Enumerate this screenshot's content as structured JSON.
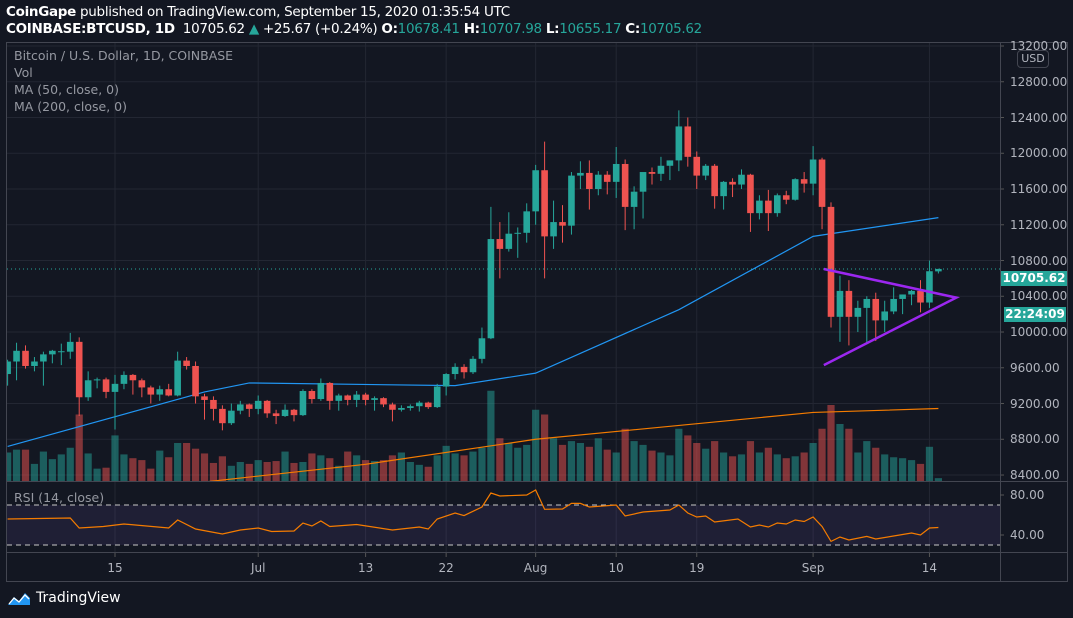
{
  "header": {
    "author": "CoinGape",
    "published": "published on TradingView.com, September 15, 2020 01:35:54 UTC",
    "symbol": "COINBASE:BTCUSD, 1D",
    "last": "10705.62",
    "change": "+25.67 (+0.24%)",
    "o_label": "O:",
    "o": "10678.41",
    "h_label": "H:",
    "h": "10707.98",
    "l_label": "L:",
    "l": "10655.17",
    "c_label": "C:",
    "c": "10705.62"
  },
  "legend": {
    "title": "Bitcoin / U.S. Dollar, 1D, COINBASE",
    "vol": "Vol",
    "ma50": "MA (50, close, 0)",
    "ma200": "MA (200, close, 0)",
    "rsi": "RSI (14, close)"
  },
  "price_axis": {
    "currency": "USD",
    "last_price_label": "10705.62",
    "countdown": "22:24:09"
  },
  "footer": {
    "brand": "TradingView"
  },
  "colors": {
    "up": "#26a69a",
    "down": "#ef5350",
    "ma50": "#2196f3",
    "ma200": "#f57c00",
    "rsi": "#f57c00",
    "triangle": "#9c27f0",
    "background": "#131722"
  },
  "chart_data": {
    "type": "candlestick",
    "title": "Bitcoin / U.S. Dollar, 1D, COINBASE",
    "start_date": "2020-06-03",
    "ylim": [
      8400,
      13200
    ],
    "price_ticks": [
      "13200.00",
      "12800.00",
      "12400.00",
      "12000.00",
      "11600.00",
      "11200.00",
      "10800.00",
      "10400.00",
      "10000.00",
      "9600.00",
      "9200.00",
      "8800.00",
      "8400.00"
    ],
    "date_ticks": [
      {
        "label": "15",
        "day": 12
      },
      {
        "label": "Jul",
        "day": 28
      },
      {
        "label": "13",
        "day": 40
      },
      {
        "label": "22",
        "day": 49
      },
      {
        "label": "Aug",
        "day": 59
      },
      {
        "label": "10",
        "day": 68
      },
      {
        "label": "19",
        "day": 77
      },
      {
        "label": "Sep",
        "day": 90
      },
      {
        "label": "14",
        "day": 103
      }
    ],
    "ohlc": [
      [
        9530,
        9690,
        9400,
        9670
      ],
      [
        9670,
        9880,
        9460,
        9790
      ],
      [
        9790,
        9850,
        9590,
        9620
      ],
      [
        9620,
        9720,
        9560,
        9670
      ],
      [
        9670,
        9780,
        9400,
        9750
      ],
      [
        9750,
        9800,
        9650,
        9790
      ],
      [
        9780,
        9870,
        9630,
        9785
      ],
      [
        9780,
        9990,
        9700,
        9890
      ],
      [
        9890,
        9940,
        9060,
        9270
      ],
      [
        9270,
        9560,
        9230,
        9460
      ],
      [
        9460,
        9490,
        9370,
        9470
      ],
      [
        9470,
        9490,
        9260,
        9330
      ],
      [
        9330,
        9520,
        8910,
        9420
      ],
      [
        9420,
        9560,
        9360,
        9520
      ],
      [
        9520,
        9530,
        9300,
        9460
      ],
      [
        9460,
        9480,
        9270,
        9380
      ],
      [
        9380,
        9400,
        9200,
        9300
      ],
      [
        9300,
        9400,
        9230,
        9360
      ],
      [
        9360,
        9420,
        9280,
        9290
      ],
      [
        9290,
        9780,
        9280,
        9680
      ],
      [
        9680,
        9720,
        9580,
        9620
      ],
      [
        9620,
        9670,
        9200,
        9280
      ],
      [
        9280,
        9310,
        9020,
        9240
      ],
      [
        9240,
        9280,
        9010,
        9140
      ],
      [
        9140,
        9180,
        8900,
        8980
      ],
      [
        8980,
        9200,
        8960,
        9120
      ],
      [
        9120,
        9230,
        9080,
        9190
      ],
      [
        9190,
        9200,
        9050,
        9140
      ],
      [
        9140,
        9290,
        9080,
        9230
      ],
      [
        9230,
        9240,
        9040,
        9090
      ],
      [
        9090,
        9130,
        8970,
        9060
      ],
      [
        9060,
        9190,
        9050,
        9130
      ],
      [
        9130,
        9140,
        9000,
        9070
      ],
      [
        9070,
        9360,
        9060,
        9340
      ],
      [
        9340,
        9360,
        9200,
        9250
      ],
      [
        9250,
        9480,
        9230,
        9430
      ],
      [
        9430,
        9440,
        9130,
        9230
      ],
      [
        9230,
        9310,
        9120,
        9290
      ],
      [
        9290,
        9300,
        9180,
        9240
      ],
      [
        9240,
        9340,
        9160,
        9300
      ],
      [
        9300,
        9320,
        9180,
        9240
      ],
      [
        9240,
        9280,
        9120,
        9260
      ],
      [
        9260,
        9270,
        9160,
        9190
      ],
      [
        9190,
        9210,
        9000,
        9130
      ],
      [
        9130,
        9180,
        9110,
        9150
      ],
      [
        9150,
        9190,
        9120,
        9170
      ],
      [
        9170,
        9230,
        9110,
        9210
      ],
      [
        9210,
        9220,
        9140,
        9160
      ],
      [
        9160,
        9420,
        9150,
        9390
      ],
      [
        9390,
        9540,
        9290,
        9530
      ],
      [
        9530,
        9650,
        9470,
        9610
      ],
      [
        9610,
        9640,
        9480,
        9550
      ],
      [
        9550,
        9730,
        9530,
        9700
      ],
      [
        9700,
        10050,
        9650,
        9930
      ],
      [
        9930,
        11400,
        9920,
        11040
      ],
      [
        11040,
        11230,
        10600,
        10930
      ],
      [
        10930,
        11340,
        10900,
        11100
      ],
      [
        11100,
        11170,
        10830,
        11110
      ],
      [
        11110,
        11440,
        11000,
        11350
      ],
      [
        11350,
        11870,
        11200,
        11810
      ],
      [
        11810,
        12130,
        10600,
        11070
      ],
      [
        11070,
        11470,
        10930,
        11230
      ],
      [
        11230,
        11420,
        11000,
        11190
      ],
      [
        11190,
        11790,
        11090,
        11750
      ],
      [
        11750,
        11910,
        11600,
        11780
      ],
      [
        11780,
        11920,
        11370,
        11600
      ],
      [
        11600,
        11800,
        11530,
        11760
      ],
      [
        11760,
        11800,
        11540,
        11680
      ],
      [
        11680,
        12070,
        11500,
        11880
      ],
      [
        11880,
        11930,
        11140,
        11400
      ],
      [
        11400,
        11630,
        11150,
        11570
      ],
      [
        11570,
        11780,
        11270,
        11790
      ],
      [
        11790,
        11840,
        11650,
        11770
      ],
      [
        11770,
        11960,
        11690,
        11860
      ],
      [
        11860,
        11920,
        11700,
        11920
      ],
      [
        11920,
        12480,
        11800,
        12300
      ],
      [
        12300,
        12400,
        11850,
        11960
      ],
      [
        11960,
        12020,
        11600,
        11750
      ],
      [
        11750,
        11880,
        11700,
        11860
      ],
      [
        11860,
        11880,
        11380,
        11520
      ],
      [
        11520,
        11690,
        11370,
        11680
      ],
      [
        11680,
        11720,
        11510,
        11650
      ],
      [
        11650,
        11820,
        11600,
        11760
      ],
      [
        11760,
        11770,
        11120,
        11330
      ],
      [
        11330,
        11530,
        11260,
        11470
      ],
      [
        11470,
        11590,
        11130,
        11330
      ],
      [
        11330,
        11550,
        11290,
        11530
      ],
      [
        11530,
        11580,
        11430,
        11480
      ],
      [
        11480,
        11720,
        11470,
        11710
      ],
      [
        11710,
        11790,
        11560,
        11660
      ],
      [
        11660,
        12080,
        11530,
        11930
      ],
      [
        11930,
        11950,
        11150,
        11400
      ],
      [
        11400,
        11450,
        10050,
        10170
      ],
      [
        10170,
        10630,
        9890,
        10460
      ],
      [
        10460,
        10580,
        9850,
        10170
      ],
      [
        10170,
        10350,
        10000,
        10270
      ],
      [
        10270,
        10400,
        9880,
        10370
      ],
      [
        10370,
        10440,
        9900,
        10130
      ],
      [
        10130,
        10350,
        10000,
        10230
      ],
      [
        10230,
        10500,
        10200,
        10370
      ],
      [
        10370,
        10420,
        10200,
        10420
      ],
      [
        10420,
        10470,
        10300,
        10460
      ],
      [
        10460,
        10580,
        10220,
        10330
      ],
      [
        10330,
        10800,
        10270,
        10680
      ],
      [
        10678.41,
        10707.98,
        10655.17,
        10705.62
      ]
    ],
    "volume_relative": [
      30,
      33,
      33,
      18,
      31,
      23,
      28,
      35,
      70,
      29,
      13,
      14,
      48,
      28,
      24,
      22,
      13,
      32,
      25,
      40,
      40,
      34,
      29,
      19,
      26,
      16,
      20,
      18,
      22,
      20,
      21,
      31,
      19,
      20,
      29,
      27,
      24,
      16,
      31,
      27,
      22,
      21,
      22,
      27,
      30,
      20,
      17,
      15,
      27,
      37,
      29,
      27,
      31,
      35,
      95,
      45,
      40,
      35,
      38,
      75,
      70,
      45,
      38,
      42,
      40,
      36,
      45,
      33,
      30,
      55,
      42,
      38,
      32,
      30,
      27,
      55,
      48,
      40,
      34,
      42,
      30,
      26,
      28,
      42,
      30,
      35,
      28,
      24,
      26,
      30,
      40,
      55,
      80,
      60,
      55,
      30,
      42,
      35,
      28,
      25,
      24,
      22,
      18,
      36,
      3
    ],
    "ma50": {
      "days": [
        0,
        22,
        27,
        50,
        59,
        75,
        90,
        104
      ],
      "values": [
        8720,
        9330,
        9430,
        9400,
        9540,
        10250,
        11070,
        11280
      ]
    },
    "ma200": {
      "days": [
        20,
        40,
        59,
        90,
        104
      ],
      "values": [
        8300,
        8520,
        8800,
        9100,
        9144
      ]
    },
    "rsi": {
      "ylim": [
        0,
        100
      ],
      "bands": [
        30,
        70
      ],
      "ticks": [
        "80.00",
        "40.00"
      ],
      "tick_values": [
        80,
        40
      ],
      "days": [
        0,
        7,
        8,
        10.7,
        13,
        18,
        19,
        21,
        24,
        26,
        28,
        29.5,
        32,
        33,
        34,
        35,
        36,
        39,
        43,
        46,
        47,
        48,
        50,
        51,
        53,
        54,
        55,
        58,
        59,
        60,
        62,
        63,
        64,
        65,
        68,
        69,
        71,
        74,
        75,
        76,
        77,
        78,
        79,
        81.6,
        83,
        84,
        85,
        86,
        87,
        88,
        89,
        90,
        91,
        92,
        93,
        94,
        96,
        97,
        99,
        101,
        102,
        103,
        104
      ],
      "values": [
        56,
        57,
        47,
        48.5,
        51,
        47,
        55,
        46,
        41,
        45,
        47,
        43.5,
        44,
        52,
        49,
        54,
        48.5,
        50.5,
        45,
        48,
        46,
        56,
        62,
        59.4,
        68,
        82,
        79,
        80,
        85,
        65.7,
        66,
        71.6,
        71.6,
        68,
        70,
        59,
        63,
        65,
        70,
        62,
        58,
        59,
        53,
        56,
        48,
        50,
        48,
        52,
        51,
        55,
        53.5,
        58,
        48.5,
        33.6,
        38,
        35,
        38.6,
        36,
        39,
        42,
        40,
        47,
        47.5
      ]
    },
    "triangle": {
      "start_day": 91.2,
      "apex_day": 106,
      "upper_start": 10705,
      "lower_start": 9630,
      "apex": 10385
    }
  }
}
